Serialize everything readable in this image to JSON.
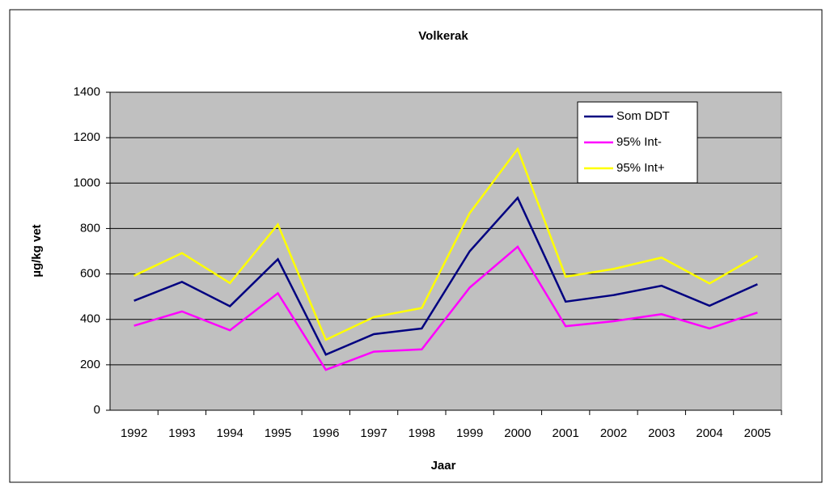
{
  "chart_data": {
    "type": "line",
    "title": "Volkerak",
    "x_label": "Jaar",
    "y_label": "µg/kg vet",
    "categories": [
      "1992",
      "1993",
      "1994",
      "1995",
      "1996",
      "1997",
      "1998",
      "1999",
      "2000",
      "2001",
      "2002",
      "2003",
      "2004",
      "2005"
    ],
    "series": [
      {
        "name": "Som DDT",
        "color": "#000080",
        "values": [
          482,
          565,
          458,
          665,
          245,
          335,
          360,
          700,
          935,
          478,
          507,
          548,
          460,
          555
        ]
      },
      {
        "name": "95% Int-",
        "color": "#ff00ff",
        "values": [
          372,
          435,
          352,
          515,
          178,
          258,
          268,
          540,
          720,
          370,
          392,
          423,
          360,
          430
        ]
      },
      {
        "name": "95% Int+",
        "color": "#ffff00",
        "values": [
          592,
          692,
          560,
          818,
          310,
          410,
          450,
          868,
          1150,
          588,
          622,
          672,
          558,
          680
        ]
      }
    ],
    "ylim": [
      0,
      1400
    ],
    "yticks": [
      0,
      200,
      400,
      600,
      800,
      1000,
      1200,
      1400
    ],
    "grid": true,
    "plot_background": "#c0c0c0",
    "legend": "top-right"
  }
}
